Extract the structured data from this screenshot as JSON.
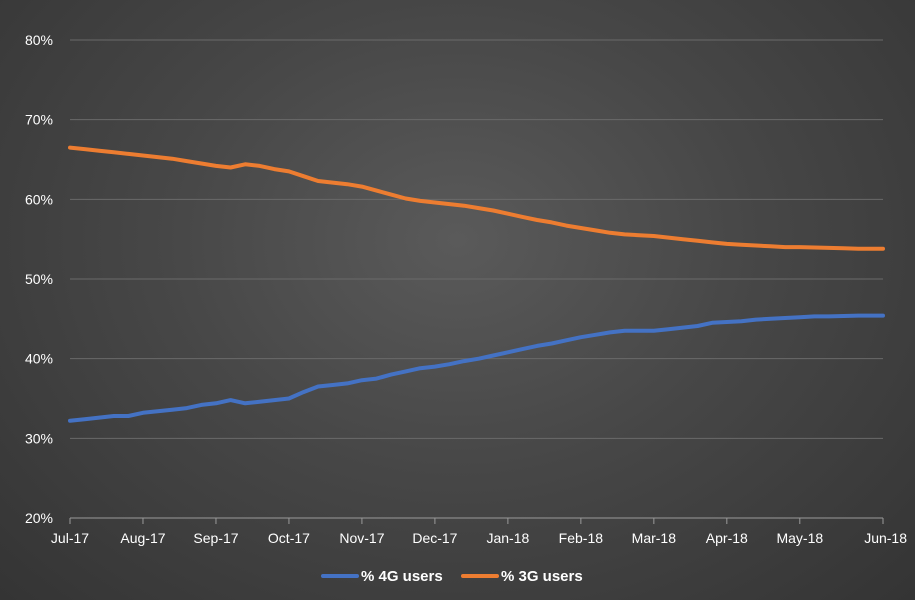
{
  "chart_data": {
    "type": "line",
    "title": "",
    "xlabel": "",
    "ylabel": "",
    "ylim": [
      20,
      80
    ],
    "yticks": [
      "20%",
      "30%",
      "40%",
      "50%",
      "60%",
      "70%",
      "80%"
    ],
    "ytick_values": [
      20,
      30,
      40,
      50,
      60,
      70,
      80
    ],
    "x_tick_labels": [
      "Jul-17",
      "Aug-17",
      "Sep-17",
      "Oct-17",
      "Nov-17",
      "Dec-17",
      "Jan-18",
      "Feb-18",
      "Mar-18",
      "Apr-18",
      "May-18",
      "Jun-18"
    ],
    "x_tick_positions": [
      0,
      5,
      10,
      15,
      20,
      25,
      30,
      35,
      40,
      45,
      50,
      55.7
    ],
    "x_max": 55.7,
    "grid": true,
    "legend_position": "bottom",
    "series": [
      {
        "name": "% 4G users",
        "color": "#4472C4",
        "x": [
          0,
          1,
          2,
          3,
          4,
          5,
          6,
          7,
          8,
          9,
          10,
          11,
          12,
          13,
          14,
          15,
          16,
          17,
          18,
          19,
          20,
          21,
          22,
          23,
          24,
          25,
          26,
          27,
          28,
          29,
          30,
          31,
          32,
          33,
          34,
          35,
          36,
          37,
          38,
          39,
          40,
          41,
          42,
          43,
          44,
          45,
          46,
          47,
          48,
          49,
          50,
          51,
          52,
          53,
          54,
          55,
          55.7
        ],
        "values": [
          32.2,
          32.4,
          32.6,
          32.8,
          32.8,
          33.2,
          33.4,
          33.6,
          33.8,
          34.2,
          34.4,
          34.8,
          34.4,
          34.6,
          34.8,
          35.0,
          35.8,
          36.5,
          36.7,
          36.9,
          37.3,
          37.5,
          38.0,
          38.4,
          38.8,
          39.0,
          39.3,
          39.7,
          40.0,
          40.4,
          40.8,
          41.2,
          41.6,
          41.9,
          42.3,
          42.7,
          43.0,
          43.3,
          43.5,
          43.5,
          43.5,
          43.7,
          43.9,
          44.1,
          44.5,
          44.6,
          44.7,
          44.9,
          45.0,
          45.1,
          45.2,
          45.3,
          45.3,
          45.35,
          45.4,
          45.4,
          45.4
        ]
      },
      {
        "name": "% 3G users",
        "color": "#ED7D31",
        "x": [
          0,
          1,
          2,
          3,
          4,
          5,
          6,
          7,
          8,
          9,
          10,
          11,
          12,
          13,
          14,
          15,
          16,
          17,
          18,
          19,
          20,
          21,
          22,
          23,
          24,
          25,
          26,
          27,
          28,
          29,
          30,
          31,
          32,
          33,
          34,
          35,
          36,
          37,
          38,
          39,
          40,
          41,
          42,
          43,
          44,
          45,
          46,
          47,
          48,
          49,
          50,
          51,
          52,
          53,
          54,
          55,
          55.7
        ],
        "values": [
          66.5,
          66.3,
          66.1,
          65.9,
          65.7,
          65.5,
          65.3,
          65.1,
          64.8,
          64.5,
          64.2,
          64.0,
          64.4,
          64.2,
          63.8,
          63.5,
          62.9,
          62.3,
          62.1,
          61.9,
          61.6,
          61.1,
          60.6,
          60.1,
          59.8,
          59.6,
          59.4,
          59.2,
          58.9,
          58.6,
          58.2,
          57.8,
          57.4,
          57.1,
          56.7,
          56.4,
          56.1,
          55.8,
          55.6,
          55.5,
          55.4,
          55.2,
          55.0,
          54.8,
          54.6,
          54.4,
          54.3,
          54.2,
          54.1,
          54.0,
          54.0,
          53.95,
          53.9,
          53.85,
          53.8,
          53.8,
          53.8
        ]
      }
    ]
  }
}
